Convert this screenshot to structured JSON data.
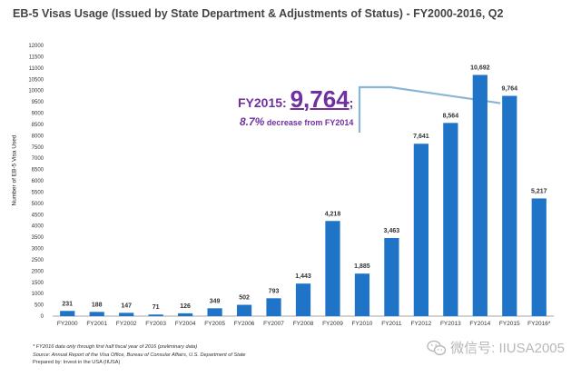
{
  "chart_data": {
    "type": "bar",
    "title": "EB-5 Visas Usage (Issued by State Department & Adjustments of Status) - FY2000-2016, Q2",
    "ylabel": "Number of EB-5 Visa Used",
    "xlabel": "",
    "ylim": [
      0,
      12000
    ],
    "yticks": [
      "0",
      "500",
      "1000",
      "1500",
      "2000",
      "2500",
      "3000",
      "3500",
      "4000",
      "4500",
      "5000",
      "5500",
      "6000",
      "6500",
      "7000",
      "7500",
      "8000",
      "8500",
      "9000",
      "9500",
      "10000",
      "10500",
      "11000",
      "11500",
      "12000"
    ],
    "categories": [
      "FY2000",
      "FY2001",
      "FY2002",
      "FY2003",
      "FY2004",
      "FY2005",
      "FY2006",
      "FY2007",
      "FY2008",
      "FY2009",
      "FY2010",
      "FY2011",
      "FY2012",
      "FY2013",
      "FY2014",
      "FY2015",
      "FY2016*"
    ],
    "values": [
      231,
      188,
      147,
      71,
      126,
      349,
      502,
      793,
      1443,
      4218,
      1885,
      3463,
      7641,
      8564,
      10692,
      9764,
      5217
    ],
    "data_labels": [
      "231",
      "188",
      "147",
      "71",
      "126",
      "349",
      "502",
      "793",
      "1,443",
      "4,218",
      "1,885",
      "3,463",
      "7,641",
      "8,564",
      "10,692",
      "9,764",
      "5,217"
    ],
    "grid": false,
    "bar_color": "#1f74c8",
    "annotation": {
      "prefix": "FY2015:",
      "value": "9,764",
      "suffix": ";",
      "pct": "8.7%",
      "detail": "decrease from FY2014",
      "points_to": "FY2015",
      "color": "#7030a0",
      "line_color": "#8ab6d6"
    }
  },
  "notes": {
    "footnote": "* FY2016 data only through first half fiscal year of 2016 (preliminary data)",
    "source": "Source: Annual Report of the Visa Office, Bureau of Consular Affairs, U.S. Department of State",
    "prepared": "Prepared by: Invest in the USA (IIUSA)"
  },
  "watermark": {
    "text": "微信号: IIUSA2005",
    "icon": "wechat-icon"
  }
}
